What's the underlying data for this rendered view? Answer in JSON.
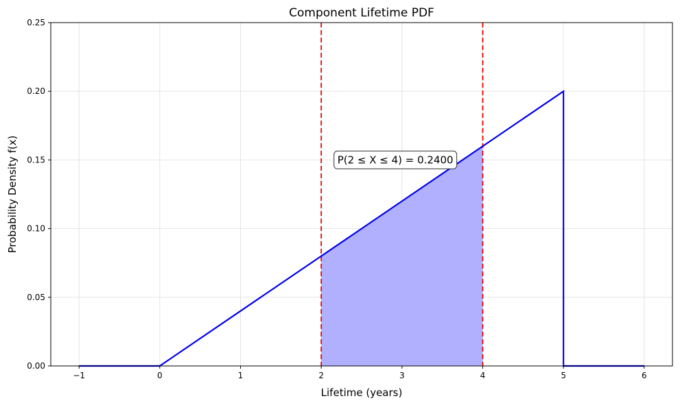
{
  "chart_data": {
    "type": "line",
    "title": "Component Lifetime PDF",
    "xlabel": "Lifetime (years)",
    "ylabel": "Probability Density f(x)",
    "xlim": [
      -1.35,
      6.35
    ],
    "ylim": [
      0,
      0.25
    ],
    "xticks": [
      -1,
      0,
      1,
      2,
      3,
      4,
      5,
      6
    ],
    "xtick_labels": [
      "−1",
      "0",
      "1",
      "2",
      "3",
      "4",
      "5",
      "6"
    ],
    "yticks": [
      0,
      0.05,
      0.1,
      0.15,
      0.2,
      0.25
    ],
    "ytick_labels": [
      "0.00",
      "0.05",
      "0.10",
      "0.15",
      "0.20",
      "0.25"
    ],
    "grid": true,
    "series": [
      {
        "color": "#0000ee",
        "x": [
          -1,
          0,
          5,
          5,
          6
        ],
        "y": [
          0,
          0,
          0.2,
          0,
          0
        ]
      }
    ],
    "shaded_region": {
      "x_from": 2,
      "x_to": 4,
      "color": "#b0b0ff"
    },
    "vertical_lines": [
      {
        "x": 2,
        "color": "#ee0000",
        "style": "dashed"
      },
      {
        "x": 4,
        "color": "#ee0000",
        "style": "dashed"
      }
    ],
    "annotation": {
      "text": "P(2 ≤ X ≤ 4) = 0.2400",
      "x": 2.2,
      "y": 0.15
    }
  }
}
